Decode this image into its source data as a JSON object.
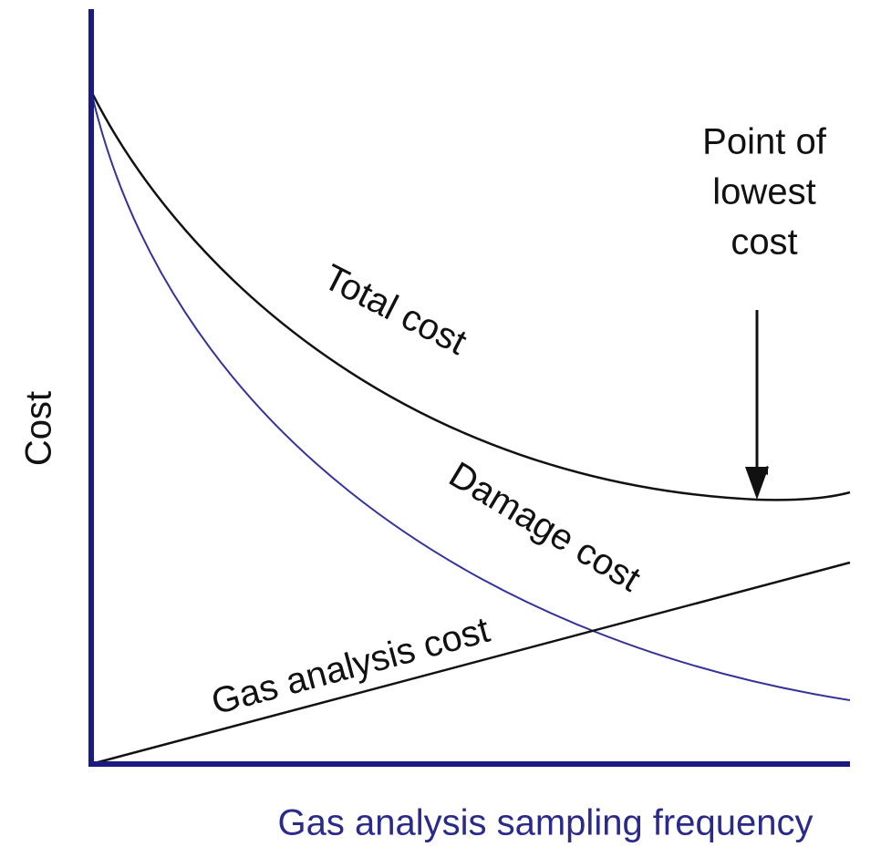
{
  "axes": {
    "y_label": "Cost",
    "x_label": "Gas analysis sampling frequency"
  },
  "curves": {
    "total": "Total cost",
    "damage": "Damage cost",
    "gas": "Gas analysis cost"
  },
  "annotation": {
    "lines": [
      "Point of",
      "lowest",
      "cost"
    ]
  }
}
